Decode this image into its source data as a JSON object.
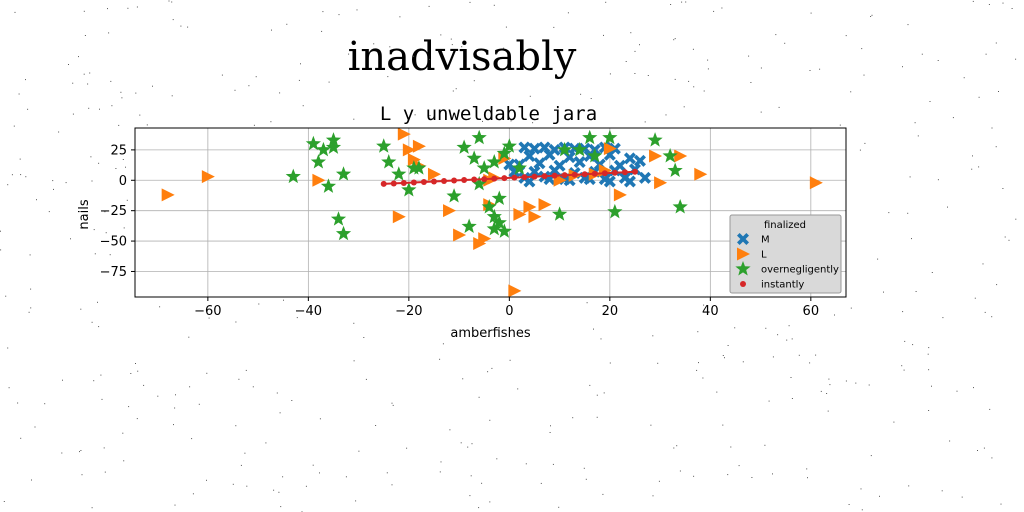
{
  "page": {
    "title": "inadvisably"
  },
  "chart_data": {
    "type": "scatter",
    "title": "L y unweldable jara",
    "xlabel": "amberfishes",
    "ylabel": "nails",
    "xlim": [
      -74.5,
      67
    ],
    "ylim": [
      -96,
      43
    ],
    "xticks": [
      -60,
      -40,
      -20,
      0,
      20,
      40,
      60
    ],
    "xtick_labels": [
      "−60",
      "−40",
      "−20",
      "0",
      "20",
      "40",
      "60"
    ],
    "yticks": [
      -75,
      -50,
      -25,
      0,
      25
    ],
    "ytick_labels": [
      "−75",
      "−50",
      "−25",
      "0",
      "25"
    ],
    "grid": true,
    "legend": {
      "title": "finalized",
      "position": "right"
    },
    "series": [
      {
        "name": "M",
        "marker": "x",
        "color": "#1f77b4",
        "x": [
          3,
          5,
          7,
          9,
          11,
          13,
          15,
          17,
          19,
          21,
          4,
          8,
          12,
          16,
          20,
          24,
          2,
          6,
          10,
          14,
          18,
          22,
          26,
          1,
          5,
          9,
          13,
          17,
          21,
          25,
          3,
          7,
          11,
          15,
          19,
          23,
          27,
          0,
          4,
          12,
          20,
          16,
          24,
          8
        ],
        "y": [
          27,
          26,
          27,
          25,
          27,
          26,
          26,
          25,
          27,
          26,
          20,
          21,
          19,
          20,
          21,
          18,
          13,
          14,
          12,
          15,
          13,
          12,
          16,
          7,
          7,
          8,
          6,
          7,
          8,
          9,
          2,
          3,
          1,
          2,
          1,
          2,
          2,
          13,
          -1,
          0,
          -1,
          1,
          -1,
          1
        ]
      },
      {
        "name": "L",
        "marker": "triangle-right",
        "color": "#ff7f0e",
        "x": [
          -68,
          -60,
          -38,
          -21,
          -20,
          -18,
          -22,
          -19,
          -18,
          -15,
          -12,
          -10,
          -6,
          -5,
          -4,
          -3,
          -1,
          2,
          5,
          7,
          10,
          13,
          17,
          19,
          20,
          22,
          29,
          30,
          34,
          38,
          61,
          -4,
          4,
          1
        ],
        "y": [
          -12,
          3,
          0,
          38,
          25,
          28,
          -30,
          17,
          12,
          5,
          -25,
          -45,
          -52,
          -48,
          -20,
          2,
          18,
          -28,
          -30,
          -20,
          0,
          4,
          5,
          8,
          26,
          -12,
          20,
          -2,
          20,
          5,
          -2,
          0,
          -22,
          -91
        ]
      },
      {
        "name": "overnegligently",
        "marker": "star",
        "color": "#2ca02c",
        "x": [
          -43,
          -39,
          -38,
          -37,
          -36,
          -35,
          -35,
          -34,
          -33,
          -33,
          -25,
          -24,
          -22,
          -20,
          -19,
          -18,
          -11,
          -9,
          -8,
          -7,
          -6,
          -5,
          -4,
          -3,
          -3,
          -2,
          -1,
          0,
          -1,
          2,
          10,
          11,
          16,
          17,
          20,
          21,
          29,
          32,
          33,
          34,
          -3,
          -2,
          -6,
          14
        ],
        "y": [
          3,
          30,
          15,
          25,
          -5,
          27,
          33,
          -32,
          -44,
          5,
          28,
          15,
          5,
          -8,
          10,
          10,
          -13,
          27,
          -38,
          18,
          35,
          10,
          -22,
          -30,
          -40,
          -15,
          22,
          28,
          -42,
          10,
          -28,
          25,
          35,
          20,
          35,
          -26,
          33,
          20,
          8,
          -22,
          15,
          -35,
          -3,
          25
        ]
      },
      {
        "name": "instantly",
        "marker": "dot",
        "color": "#d62728",
        "line": true,
        "x": [
          -25,
          -23,
          -21,
          -19,
          -17,
          -15,
          -13,
          -11,
          -9,
          -7,
          -5,
          -3,
          -1,
          1,
          3,
          5,
          7,
          9,
          11,
          13,
          15,
          17,
          19,
          21,
          23,
          25
        ],
        "y": [
          -3,
          -2.6,
          -2.2,
          -1.8,
          -1.4,
          -1,
          -0.6,
          -0.2,
          0.2,
          0.6,
          1,
          1.4,
          1.8,
          2.2,
          2.6,
          3,
          3.4,
          3.8,
          4.2,
          4.6,
          5,
          5.4,
          5.8,
          6.2,
          6.6,
          7
        ]
      }
    ]
  }
}
